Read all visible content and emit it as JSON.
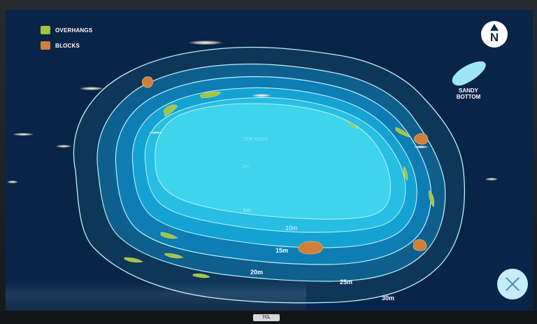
{
  "legend": {
    "items": [
      {
        "label": "OVERHANGS",
        "color": "#a4c43f",
        "icon": "overhangs-swatch"
      },
      {
        "label": "BLOCKS",
        "color": "#cf7f3c",
        "icon": "blocks-swatch"
      }
    ]
  },
  "compass": {
    "letter": "N",
    "icon": "north-arrow-icon"
  },
  "sandy_bottom": {
    "line1": "SANDY",
    "line2": "BOTTOM"
  },
  "map": {
    "reef_name": "TOP REEF",
    "depths": [
      "2m",
      "5m",
      "10m",
      "15m",
      "20m",
      "25m",
      "30m"
    ]
  },
  "controls": {
    "close_icon": "close-icon"
  },
  "device": {
    "brand": "TCL"
  },
  "colors": {
    "background": "#082447",
    "zone_30m": "#0d3658",
    "zone_25m": "#0e5f8e",
    "zone_20m": "#0d7db4",
    "zone_15m": "#13a2d2",
    "zone_10m": "#28bde2",
    "zone_top": "#3dd4ec",
    "contour_line": "#bff0f7",
    "close_button": "#c6ecfb"
  }
}
